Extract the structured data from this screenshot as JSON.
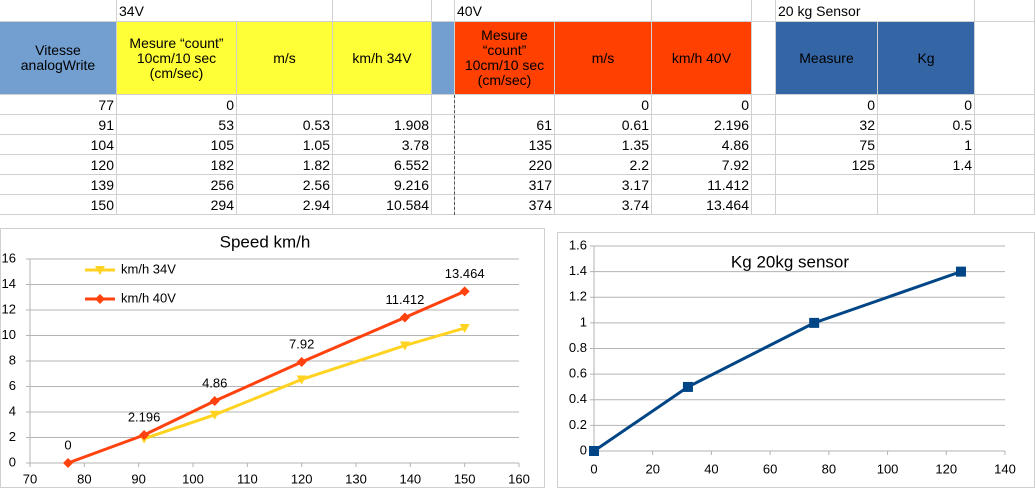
{
  "table": {
    "sections": [
      "34V",
      "40V",
      "20 kg Sensor"
    ],
    "headers": [
      "Vitesse\nanalogWrite",
      "Mesure “count”\n10cm/10 sec\n(cm/sec)",
      "m/s",
      "km/h 34V",
      "Mesure\n“count”\n10cm/10 sec\n(cm/sec)",
      "m/s",
      "km/h 40V",
      "Measure",
      "Kg"
    ],
    "rows": [
      [
        77,
        0,
        null,
        null,
        null,
        0,
        0,
        0,
        0
      ],
      [
        91,
        53,
        0.53,
        1.908,
        61,
        0.61,
        2.196,
        32,
        0.5
      ],
      [
        104,
        105,
        1.05,
        3.78,
        135,
        1.35,
        4.86,
        75,
        1
      ],
      [
        120,
        182,
        1.82,
        6.552,
        220,
        2.2,
        7.92,
        125,
        1.4
      ],
      [
        139,
        256,
        2.56,
        9.216,
        317,
        3.17,
        11.412,
        null,
        null
      ],
      [
        150,
        294,
        2.94,
        10.584,
        374,
        3.74,
        13.464,
        null,
        null
      ]
    ]
  },
  "chart_data": [
    {
      "type": "line",
      "title": "Speed km/h",
      "xlim": [
        70,
        160
      ],
      "xticks": [
        70,
        80,
        90,
        100,
        110,
        120,
        130,
        140,
        150,
        160
      ],
      "ylim": [
        0,
        16
      ],
      "yticks": [
        0,
        2,
        4,
        6,
        8,
        10,
        12,
        14,
        16
      ],
      "grid": true,
      "legend": "top-left",
      "series": [
        {
          "name": "km/h 34V",
          "color": "#ffd320",
          "marker": "triangle-down",
          "x": [
            91,
            104,
            120,
            139,
            150
          ],
          "values": [
            1.908,
            3.78,
            6.552,
            9.216,
            10.584
          ],
          "data_labels": false
        },
        {
          "name": "km/h 40V",
          "color": "#ff420e",
          "marker": "diamond",
          "x": [
            77,
            91,
            104,
            120,
            139,
            150
          ],
          "values": [
            0,
            2.196,
            4.86,
            7.92,
            11.412,
            13.464
          ],
          "data_labels": true
        }
      ]
    },
    {
      "type": "line",
      "title": "Kg  20kg sensor",
      "xlim": [
        0,
        140
      ],
      "xticks": [
        0,
        20,
        40,
        60,
        80,
        100,
        120,
        140
      ],
      "ylim": [
        0,
        1.6
      ],
      "yticks": [
        0,
        0.2,
        0.4,
        0.6,
        0.8,
        1,
        1.2,
        1.4,
        1.6
      ],
      "grid": true,
      "legend": "none",
      "series": [
        {
          "color": "#004586",
          "marker": "square",
          "x": [
            0,
            32,
            75,
            125
          ],
          "values": [
            0,
            0.5,
            1,
            1.4
          ],
          "data_labels": false
        }
      ]
    }
  ]
}
